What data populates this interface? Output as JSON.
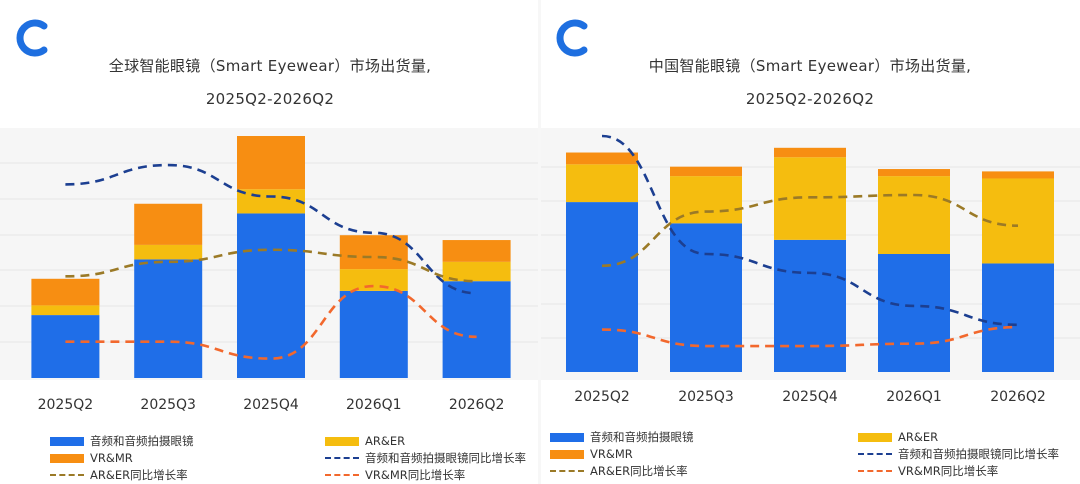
{
  "charts": [
    {
      "title_line1": "全球智能眼镜（Smart Eyewear）市场出货量,",
      "title_line2": "2025Q2-2026Q2",
      "legend": [
        {
          "label": "音频和音频拍摄眼镜",
          "color": "#1f6ee8",
          "kind": "bar"
        },
        {
          "label": "AR&ER",
          "color": "#f5bd0f",
          "kind": "bar"
        },
        {
          "label": "VR&MR",
          "color": "#f78e12",
          "kind": "bar"
        },
        {
          "label": "音频和音频拍摄眼镜同比增长率",
          "color": "#1c3f91",
          "kind": "dash"
        },
        {
          "label": "AR&ER同比增长率",
          "color": "#9b7a27",
          "kind": "dash"
        },
        {
          "label": "VR&MR同比增长率",
          "color": "#f2682d",
          "kind": "dash"
        }
      ]
    },
    {
      "title_line1": "中国智能眼镜（Smart Eyewear）市场出货量,",
      "title_line2": "2025Q2-2026Q2",
      "legend": [
        {
          "label": "音频和音频拍摄眼镜",
          "color": "#1f6ee8",
          "kind": "bar"
        },
        {
          "label": "AR&ER",
          "color": "#f5bd0f",
          "kind": "bar"
        },
        {
          "label": "VR&MR",
          "color": "#f78e12",
          "kind": "bar"
        },
        {
          "label": "音频和音频拍摄眼镜同比增长率",
          "color": "#1c3f91",
          "kind": "dash"
        },
        {
          "label": "AR&ER同比增长率",
          "color": "#9b7a27",
          "kind": "dash"
        },
        {
          "label": "VR&MR同比增长率",
          "color": "#f2682d",
          "kind": "dash"
        }
      ]
    }
  ],
  "chart_data": [
    {
      "type": "bar",
      "stacked": true,
      "title": "全球智能眼镜（Smart Eyewear）市场出货量, 2025Q2-2026Q2",
      "categories": [
        "2025Q2",
        "2025Q3",
        "2025Q4",
        "2026Q1",
        "2026Q2"
      ],
      "ylim": [
        0,
        100
      ],
      "y2lim": [
        0,
        100
      ],
      "grid": true,
      "legend_position": "bottom",
      "series": [
        {
          "name": "音频和音频拍摄眼镜",
          "kind": "bar",
          "color": "#1f6ee8",
          "values": [
            26,
            49,
            68,
            36,
            40
          ]
        },
        {
          "name": "AR&ER",
          "kind": "bar",
          "color": "#f5bd0f",
          "values": [
            4,
            6,
            10,
            9,
            8
          ]
        },
        {
          "name": "VR&MR",
          "kind": "bar",
          "color": "#f78e12",
          "values": [
            11,
            17,
            22,
            14,
            9
          ]
        },
        {
          "name": "音频和音频拍摄眼镜同比增长率",
          "kind": "line",
          "color": "#1c3f91",
          "values": [
            80,
            88,
            75,
            60,
            35
          ]
        },
        {
          "name": "AR&ER同比增长率",
          "kind": "line",
          "color": "#9b7a27",
          "values": [
            42,
            48,
            53,
            50,
            40
          ]
        },
        {
          "name": "VR&MR同比增长率",
          "kind": "line",
          "color": "#f2682d",
          "values": [
            15,
            15,
            8,
            38,
            17
          ]
        }
      ]
    },
    {
      "type": "bar",
      "stacked": true,
      "title": "中国智能眼镜（Smart Eyewear）市场出货量, 2025Q2-2026Q2",
      "categories": [
        "2025Q2",
        "2025Q3",
        "2025Q4",
        "2026Q1",
        "2026Q2"
      ],
      "ylim": [
        0,
        100
      ],
      "y2lim": [
        0,
        100
      ],
      "grid": true,
      "legend_position": "bottom",
      "series": [
        {
          "name": "音频和音频拍摄眼镜",
          "kind": "bar",
          "color": "#1f6ee8",
          "values": [
            72,
            63,
            56,
            50,
            46
          ]
        },
        {
          "name": "AR&ER",
          "kind": "bar",
          "color": "#f5bd0f",
          "values": [
            16,
            20,
            35,
            33,
            36
          ]
        },
        {
          "name": "VR&MR",
          "kind": "bar",
          "color": "#f78e12",
          "values": [
            5,
            4,
            4,
            3,
            3
          ]
        },
        {
          "name": "音频和音频拍摄眼镜同比增长率",
          "kind": "line",
          "color": "#1c3f91",
          "values": [
            100,
            50,
            42,
            28,
            20
          ]
        },
        {
          "name": "AR&ER同比增长率",
          "kind": "line",
          "color": "#9b7a27",
          "values": [
            45,
            68,
            74,
            75,
            62
          ]
        },
        {
          "name": "VR&MR同比增长率",
          "kind": "line",
          "color": "#f2682d",
          "values": [
            18,
            11,
            11,
            12,
            19
          ]
        }
      ]
    }
  ]
}
